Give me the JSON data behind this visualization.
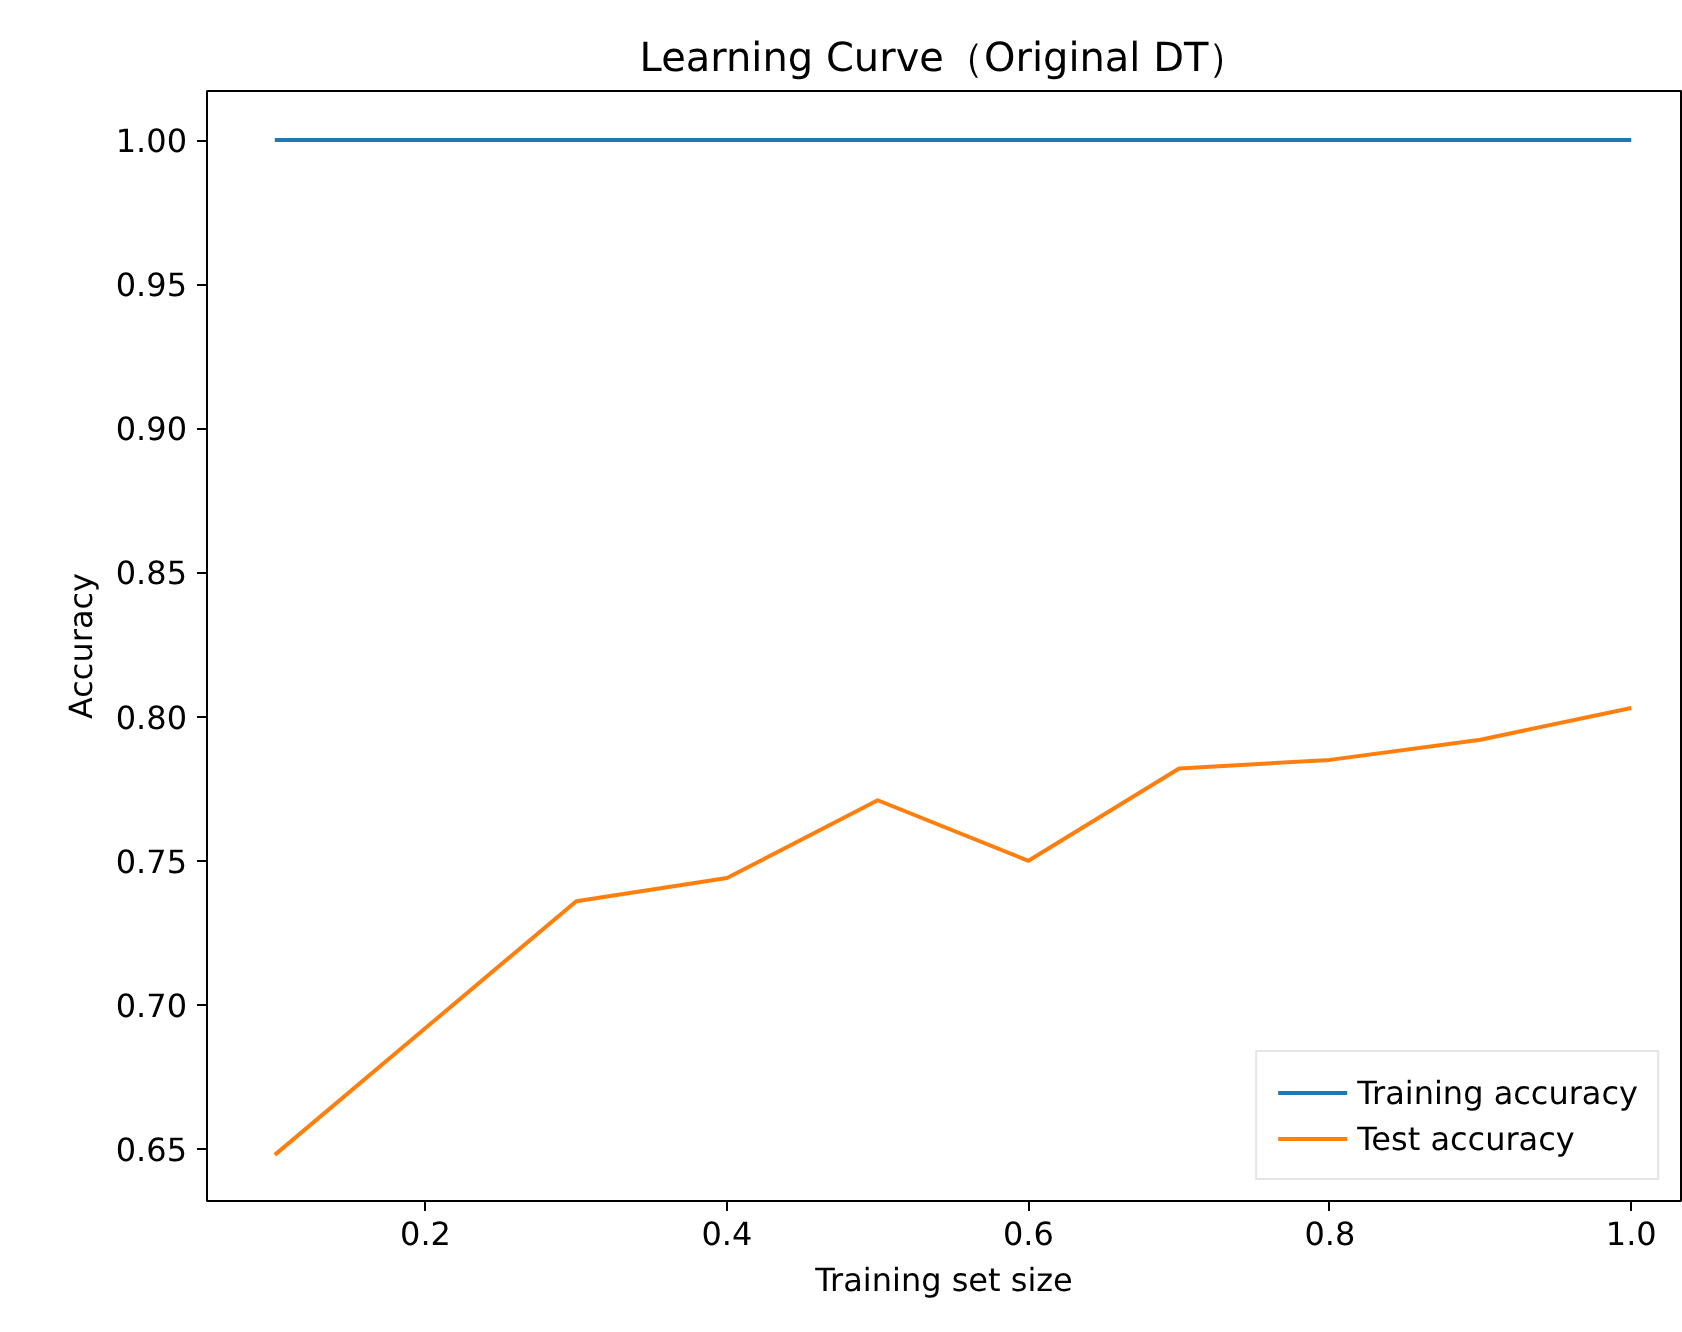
{
  "chart_data": {
    "type": "line",
    "title": "Learning Curve（Original DT）",
    "xlabel": "Training set size",
    "ylabel": "Accuracy",
    "x": [
      0.1,
      0.2,
      0.3,
      0.4,
      0.5,
      0.6,
      0.7,
      0.8,
      0.9,
      1.0
    ],
    "series": [
      {
        "name": "Training accuracy",
        "color": "#1f77b4",
        "values": [
          1.0,
          1.0,
          1.0,
          1.0,
          1.0,
          1.0,
          1.0,
          1.0,
          1.0,
          1.0
        ]
      },
      {
        "name": "Test accuracy",
        "color": "#ff7f0e",
        "values": [
          0.648,
          0.692,
          0.736,
          0.744,
          0.771,
          0.75,
          0.782,
          0.785,
          0.792,
          0.803
        ]
      }
    ],
    "xlim": [
      0.055,
      1.033
    ],
    "ylim": [
      0.632,
      1.017
    ],
    "xticks": [
      0.2,
      0.4,
      0.6,
      0.8,
      {
        "value": 1.0,
        "label": "1.0"
      }
    ],
    "yticks": [
      0.65,
      {
        "value": 0.7,
        "label": "0.70"
      },
      0.75,
      {
        "value": 0.8,
        "label": "0.80"
      },
      0.85,
      {
        "value": 0.9,
        "label": "0.90"
      },
      0.95,
      {
        "value": 1.0,
        "label": "1.00"
      }
    ],
    "grid": false,
    "legend": "bottom right",
    "marker": "none",
    "line_style": "solid"
  }
}
